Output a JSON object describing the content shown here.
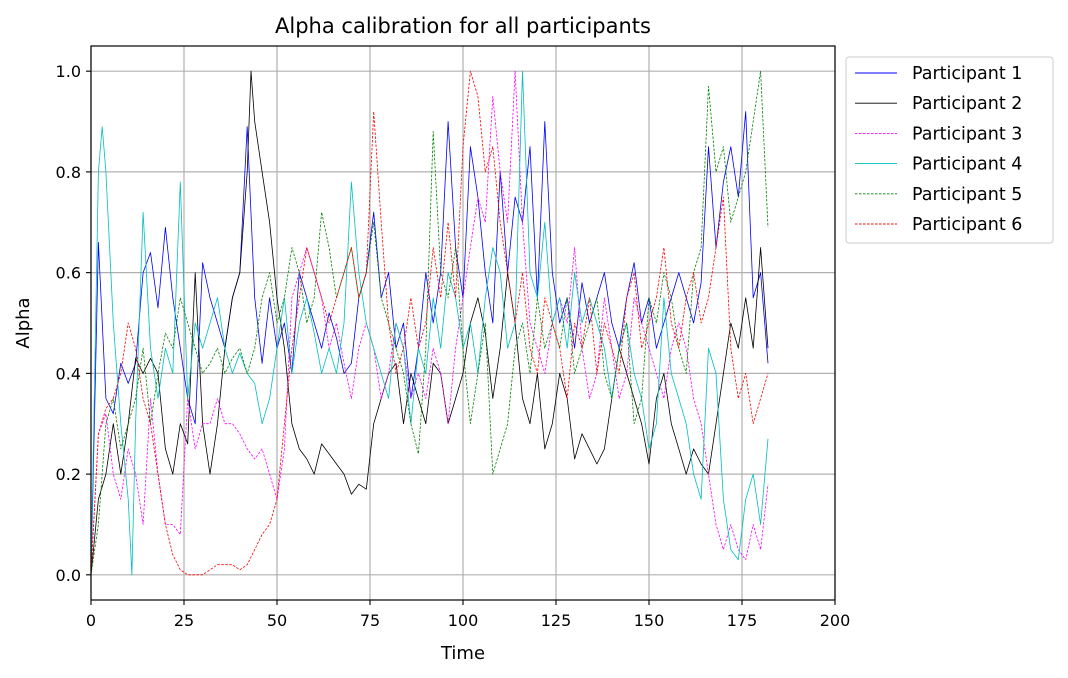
{
  "chart_data": {
    "type": "line",
    "title": "Alpha calibration for all participants",
    "xlabel": "Time",
    "ylabel": "Alpha",
    "xlim": [
      0,
      200
    ],
    "ylim": [
      -0.05,
      1.05
    ],
    "x_ticks": [
      0,
      25,
      50,
      75,
      100,
      125,
      150,
      175,
      200
    ],
    "x_tick_labels": [
      "0",
      "25",
      "50",
      "75",
      "100",
      "125",
      "150",
      "175",
      "200"
    ],
    "y_ticks": [
      0.0,
      0.2,
      0.4,
      0.6,
      0.8,
      1.0
    ],
    "y_tick_labels": [
      "0.0",
      "0.2",
      "0.4",
      "0.6",
      "0.8",
      "1.0"
    ],
    "grid": true,
    "legend_position": "outside-top-right",
    "series": [
      {
        "name": "Participant 1",
        "color": "#0000ff",
        "style": "solid",
        "x": [
          0,
          2,
          4,
          6,
          8,
          10,
          12,
          14,
          16,
          18,
          20,
          22,
          24,
          26,
          28,
          30,
          32,
          34,
          36,
          38,
          40,
          42,
          44,
          46,
          48,
          50,
          52,
          54,
          56,
          58,
          60,
          62,
          64,
          66,
          68,
          70,
          72,
          74,
          76,
          78,
          80,
          82,
          84,
          86,
          88,
          90,
          92,
          94,
          96,
          98,
          100,
          102,
          104,
          106,
          108,
          110,
          112,
          114,
          116,
          118,
          120,
          122,
          124,
          126,
          128,
          130,
          132,
          134,
          136,
          138,
          140,
          142,
          144,
          146,
          148,
          150,
          152,
          154,
          156,
          158,
          160,
          162,
          164,
          166,
          168,
          170,
          172,
          174,
          176,
          178,
          180,
          182
        ],
        "y": [
          0.0,
          0.66,
          0.35,
          0.32,
          0.42,
          0.38,
          0.42,
          0.6,
          0.64,
          0.53,
          0.69,
          0.55,
          0.45,
          0.35,
          0.3,
          0.62,
          0.55,
          0.5,
          0.45,
          0.55,
          0.6,
          0.89,
          0.55,
          0.42,
          0.55,
          0.45,
          0.5,
          0.4,
          0.6,
          0.55,
          0.5,
          0.45,
          0.52,
          0.47,
          0.4,
          0.42,
          0.55,
          0.6,
          0.72,
          0.55,
          0.6,
          0.45,
          0.5,
          0.35,
          0.45,
          0.6,
          0.5,
          0.6,
          0.9,
          0.65,
          0.55,
          0.85,
          0.75,
          0.6,
          0.5,
          0.8,
          0.6,
          0.75,
          0.7,
          0.85,
          0.55,
          0.9,
          0.6,
          0.5,
          0.55,
          0.45,
          0.58,
          0.5,
          0.55,
          0.6,
          0.5,
          0.45,
          0.55,
          0.62,
          0.5,
          0.55,
          0.45,
          0.5,
          0.55,
          0.6,
          0.55,
          0.5,
          0.58,
          0.85,
          0.65,
          0.78,
          0.85,
          0.75,
          0.92,
          0.55,
          0.6,
          0.42
        ]
      },
      {
        "name": "Participant 2",
        "color": "#000000",
        "style": "solid",
        "x": [
          0,
          2,
          4,
          6,
          8,
          10,
          12,
          14,
          16,
          18,
          20,
          22,
          24,
          26,
          28,
          30,
          32,
          34,
          36,
          38,
          40,
          42,
          43,
          44,
          46,
          48,
          50,
          52,
          54,
          56,
          58,
          60,
          62,
          64,
          66,
          68,
          70,
          72,
          74,
          76,
          78,
          80,
          82,
          84,
          86,
          88,
          90,
          92,
          94,
          96,
          98,
          100,
          102,
          104,
          106,
          108,
          110,
          112,
          114,
          116,
          118,
          120,
          122,
          124,
          126,
          128,
          130,
          132,
          134,
          136,
          138,
          140,
          142,
          144,
          146,
          148,
          150,
          152,
          154,
          156,
          158,
          160,
          162,
          164,
          166,
          168,
          170,
          172,
          174,
          176,
          178,
          180,
          182
        ],
        "y": [
          0.0,
          0.15,
          0.2,
          0.3,
          0.2,
          0.3,
          0.43,
          0.4,
          0.43,
          0.4,
          0.25,
          0.2,
          0.3,
          0.26,
          0.6,
          0.3,
          0.2,
          0.3,
          0.45,
          0.55,
          0.6,
          0.8,
          1.0,
          0.9,
          0.8,
          0.7,
          0.55,
          0.45,
          0.3,
          0.25,
          0.23,
          0.2,
          0.26,
          0.24,
          0.22,
          0.2,
          0.16,
          0.18,
          0.17,
          0.3,
          0.35,
          0.4,
          0.42,
          0.3,
          0.4,
          0.35,
          0.3,
          0.42,
          0.4,
          0.3,
          0.35,
          0.4,
          0.5,
          0.55,
          0.48,
          0.35,
          0.45,
          0.6,
          0.5,
          0.35,
          0.3,
          0.4,
          0.25,
          0.3,
          0.4,
          0.35,
          0.23,
          0.28,
          0.25,
          0.22,
          0.25,
          0.35,
          0.45,
          0.4,
          0.35,
          0.3,
          0.22,
          0.35,
          0.4,
          0.3,
          0.25,
          0.2,
          0.25,
          0.22,
          0.2,
          0.3,
          0.4,
          0.5,
          0.45,
          0.55,
          0.45,
          0.65,
          0.45
        ]
      },
      {
        "name": "Participant 3",
        "color": "#ff00ff",
        "style": "dashed",
        "x": [
          0,
          2,
          4,
          6,
          8,
          10,
          12,
          14,
          16,
          18,
          20,
          22,
          24,
          26,
          28,
          30,
          32,
          34,
          36,
          38,
          40,
          42,
          44,
          46,
          48,
          50,
          52,
          54,
          56,
          58,
          60,
          62,
          64,
          66,
          68,
          70,
          72,
          74,
          76,
          78,
          80,
          82,
          84,
          86,
          88,
          90,
          92,
          94,
          96,
          98,
          100,
          102,
          104,
          106,
          108,
          110,
          112,
          114,
          116,
          118,
          120,
          122,
          124,
          126,
          128,
          130,
          132,
          134,
          136,
          138,
          140,
          142,
          144,
          146,
          148,
          150,
          152,
          154,
          156,
          158,
          160,
          162,
          164,
          166,
          168,
          170,
          172,
          174,
          176,
          178,
          180,
          182
        ],
        "y": [
          0.0,
          0.28,
          0.32,
          0.2,
          0.15,
          0.25,
          0.2,
          0.1,
          0.35,
          0.2,
          0.1,
          0.1,
          0.08,
          0.35,
          0.25,
          0.3,
          0.3,
          0.35,
          0.3,
          0.3,
          0.28,
          0.25,
          0.23,
          0.25,
          0.2,
          0.15,
          0.25,
          0.55,
          0.6,
          0.65,
          0.6,
          0.55,
          0.45,
          0.5,
          0.42,
          0.35,
          0.45,
          0.5,
          0.45,
          0.35,
          0.4,
          0.5,
          0.45,
          0.35,
          0.4,
          0.35,
          0.45,
          0.4,
          0.3,
          0.45,
          0.55,
          0.65,
          0.75,
          0.7,
          0.95,
          0.8,
          0.7,
          1.0,
          0.7,
          0.5,
          0.45,
          0.4,
          0.5,
          0.55,
          0.5,
          0.65,
          0.45,
          0.35,
          0.4,
          0.55,
          0.45,
          0.35,
          0.4,
          0.55,
          0.5,
          0.45,
          0.4,
          0.35,
          0.45,
          0.5,
          0.45,
          0.35,
          0.3,
          0.2,
          0.1,
          0.05,
          0.1,
          0.05,
          0.03,
          0.1,
          0.05,
          0.18
        ]
      },
      {
        "name": "Participant 4",
        "color": "#00bfbf",
        "style": "solid",
        "x": [
          0,
          2,
          3,
          4,
          6,
          8,
          10,
          11,
          12,
          14,
          16,
          18,
          20,
          22,
          24,
          26,
          28,
          30,
          32,
          34,
          36,
          38,
          40,
          42,
          44,
          46,
          48,
          50,
          52,
          54,
          56,
          58,
          60,
          62,
          64,
          66,
          68,
          70,
          72,
          74,
          76,
          78,
          80,
          82,
          84,
          86,
          88,
          90,
          92,
          94,
          96,
          98,
          100,
          102,
          104,
          106,
          108,
          110,
          112,
          114,
          116,
          118,
          120,
          122,
          124,
          126,
          128,
          130,
          132,
          134,
          136,
          138,
          140,
          142,
          144,
          146,
          148,
          150,
          152,
          154,
          156,
          158,
          160,
          162,
          164,
          166,
          168,
          170,
          172,
          174,
          176,
          178,
          180,
          182
        ],
        "y": [
          0.0,
          0.8,
          0.89,
          0.8,
          0.5,
          0.3,
          0.15,
          0.0,
          0.3,
          0.72,
          0.45,
          0.35,
          0.45,
          0.4,
          0.78,
          0.35,
          0.5,
          0.45,
          0.5,
          0.55,
          0.45,
          0.4,
          0.44,
          0.4,
          0.38,
          0.3,
          0.35,
          0.45,
          0.55,
          0.4,
          0.5,
          0.55,
          0.48,
          0.4,
          0.45,
          0.4,
          0.5,
          0.78,
          0.6,
          0.5,
          0.45,
          0.4,
          0.35,
          0.5,
          0.45,
          0.3,
          0.45,
          0.4,
          0.55,
          0.45,
          0.6,
          0.55,
          0.45,
          0.5,
          0.4,
          0.55,
          0.65,
          0.6,
          0.45,
          0.5,
          1.0,
          0.6,
          0.55,
          0.7,
          0.5,
          0.55,
          0.45,
          0.6,
          0.5,
          0.55,
          0.5,
          0.45,
          0.35,
          0.45,
          0.5,
          0.4,
          0.35,
          0.25,
          0.3,
          0.55,
          0.4,
          0.35,
          0.3,
          0.2,
          0.15,
          0.45,
          0.4,
          0.15,
          0.05,
          0.03,
          0.15,
          0.2,
          0.1,
          0.27
        ]
      },
      {
        "name": "Participant 5",
        "color": "#008000",
        "style": "dashed",
        "x": [
          0,
          2,
          4,
          6,
          8,
          10,
          12,
          14,
          16,
          18,
          20,
          22,
          24,
          26,
          28,
          30,
          32,
          34,
          36,
          38,
          40,
          42,
          44,
          46,
          48,
          50,
          52,
          54,
          56,
          58,
          60,
          62,
          64,
          66,
          68,
          70,
          72,
          74,
          76,
          78,
          80,
          82,
          84,
          86,
          88,
          90,
          92,
          94,
          96,
          98,
          100,
          102,
          104,
          106,
          108,
          110,
          112,
          114,
          116,
          118,
          120,
          122,
          124,
          126,
          128,
          130,
          132,
          134,
          136,
          138,
          140,
          142,
          144,
          146,
          148,
          150,
          152,
          154,
          156,
          158,
          160,
          162,
          164,
          166,
          168,
          170,
          172,
          174,
          176,
          178,
          180,
          182
        ],
        "y": [
          0.0,
          0.1,
          0.3,
          0.35,
          0.25,
          0.3,
          0.35,
          0.45,
          0.3,
          0.4,
          0.48,
          0.45,
          0.55,
          0.5,
          0.45,
          0.4,
          0.42,
          0.45,
          0.4,
          0.43,
          0.45,
          0.4,
          0.45,
          0.55,
          0.6,
          0.5,
          0.55,
          0.65,
          0.6,
          0.5,
          0.55,
          0.72,
          0.65,
          0.55,
          0.6,
          0.65,
          0.55,
          0.6,
          0.7,
          0.55,
          0.5,
          0.45,
          0.4,
          0.3,
          0.24,
          0.45,
          0.88,
          0.6,
          0.55,
          0.65,
          0.45,
          0.3,
          0.4,
          0.5,
          0.2,
          0.25,
          0.3,
          0.45,
          0.5,
          0.4,
          0.55,
          0.45,
          0.5,
          0.45,
          0.55,
          0.4,
          0.45,
          0.5,
          0.55,
          0.4,
          0.35,
          0.45,
          0.5,
          0.3,
          0.35,
          0.55,
          0.5,
          0.6,
          0.55,
          0.45,
          0.4,
          0.6,
          0.65,
          0.97,
          0.8,
          0.85,
          0.7,
          0.75,
          0.8,
          0.9,
          1.0,
          0.69
        ]
      },
      {
        "name": "Participant 6",
        "color": "#ff0000",
        "style": "dashed",
        "x": [
          0,
          2,
          4,
          6,
          8,
          10,
          12,
          14,
          16,
          18,
          20,
          22,
          24,
          26,
          28,
          30,
          32,
          34,
          36,
          38,
          40,
          42,
          44,
          46,
          48,
          50,
          52,
          54,
          56,
          58,
          60,
          62,
          64,
          66,
          68,
          70,
          72,
          74,
          76,
          78,
          80,
          82,
          84,
          86,
          88,
          90,
          92,
          94,
          96,
          98,
          100,
          102,
          104,
          106,
          108,
          110,
          112,
          114,
          116,
          118,
          120,
          122,
          124,
          126,
          128,
          130,
          132,
          134,
          136,
          138,
          140,
          142,
          144,
          146,
          148,
          150,
          152,
          154,
          156,
          158,
          160,
          162,
          164,
          166,
          168,
          170,
          172,
          174,
          176,
          178,
          180,
          182
        ],
        "y": [
          0.0,
          0.28,
          0.33,
          0.35,
          0.4,
          0.5,
          0.45,
          0.35,
          0.3,
          0.2,
          0.1,
          0.04,
          0.01,
          0.0,
          0.0,
          0.0,
          0.01,
          0.02,
          0.02,
          0.02,
          0.01,
          0.02,
          0.05,
          0.08,
          0.1,
          0.15,
          0.3,
          0.45,
          0.55,
          0.65,
          0.6,
          0.55,
          0.5,
          0.55,
          0.6,
          0.65,
          0.55,
          0.6,
          0.92,
          0.7,
          0.5,
          0.4,
          0.45,
          0.55,
          0.45,
          0.5,
          0.65,
          0.55,
          0.7,
          0.55,
          0.85,
          1.0,
          0.95,
          0.8,
          0.85,
          0.7,
          0.6,
          0.5,
          0.6,
          0.45,
          0.4,
          0.55,
          0.5,
          0.45,
          0.35,
          0.5,
          0.45,
          0.55,
          0.4,
          0.5,
          0.45,
          0.4,
          0.55,
          0.6,
          0.45,
          0.5,
          0.55,
          0.65,
          0.5,
          0.45,
          0.55,
          0.6,
          0.5,
          0.55,
          0.65,
          0.75,
          0.45,
          0.35,
          0.4,
          0.3,
          0.35,
          0.4
        ]
      }
    ]
  }
}
